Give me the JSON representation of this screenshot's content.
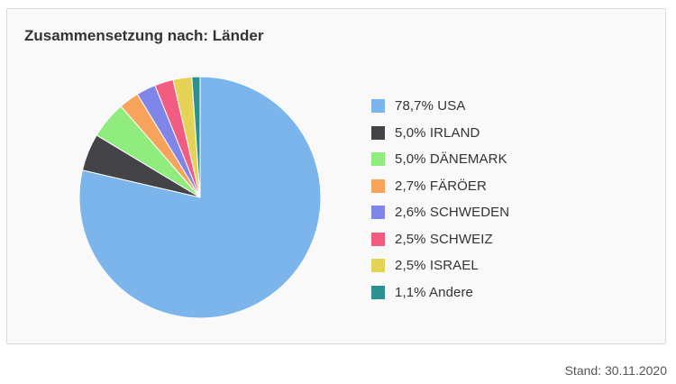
{
  "chart_data": {
    "type": "pie",
    "title": "Zusammensetzung nach: Länder",
    "categories": [
      "USA",
      "IRLAND",
      "DÄNEMARK",
      "FÄRÖER",
      "SCHWEDEN",
      "SCHWEIZ",
      "ISRAEL",
      "Andere"
    ],
    "values": [
      78.7,
      5.0,
      5.0,
      2.7,
      2.6,
      2.5,
      2.5,
      1.1
    ],
    "unit": "%",
    "labels": [
      "78,7% USA",
      "5,0% IRLAND",
      "5,0% DÄNEMARK",
      "2,7% FÄRÖER",
      "2,6% SCHWEDEN",
      "2,5% SCHWEIZ",
      "2,5% ISRAEL",
      "1,1% Andere"
    ],
    "colors": [
      "#7cb5ec",
      "#434348",
      "#90ed7d",
      "#f7a35c",
      "#8085e9",
      "#f15c80",
      "#e4d354",
      "#2b908f"
    ],
    "legend_position": "right"
  },
  "footer": {
    "stand": "Stand: 30.11.2020"
  }
}
